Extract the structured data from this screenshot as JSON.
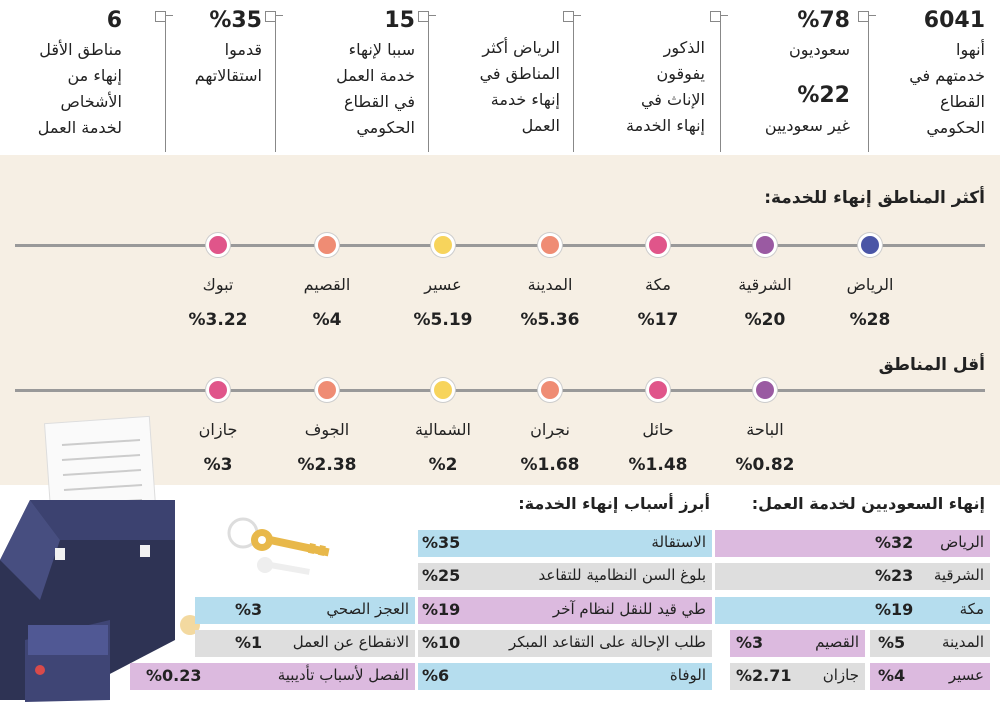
{
  "stats": [
    {
      "number": "6041",
      "lines": [
        "أنهوا",
        "خدمتهم في",
        "القطاع",
        "الحكومي"
      ]
    },
    {
      "number": "%78",
      "lines": [
        "سعوديون"
      ],
      "number2": "%22",
      "lines2": [
        "غير سعوديين"
      ]
    },
    {
      "lines": [
        "الذكور",
        "يفوقون",
        "الإناث في",
        "إنهاء الخدمة"
      ]
    },
    {
      "lines": [
        "الرياض أكثر",
        "المناطق في",
        "إنهاء خدمة",
        "العمل"
      ]
    },
    {
      "number": "15",
      "lines": [
        "سببا لإنهاء",
        "خدمة العمل",
        "في القطاع",
        "الحكومي"
      ]
    },
    {
      "number": "%35",
      "lines": [
        "قدموا",
        "استقالاتهم"
      ]
    },
    {
      "number": "6",
      "lines": [
        "مناطق الأقل",
        "إنهاء من",
        "الأشخاص",
        "لخدمة العمل"
      ]
    }
  ],
  "most_regions": {
    "title": "أكثر المناطق إنهاء للخدمة:",
    "items": [
      {
        "name": "الرياض",
        "value": "%28"
      },
      {
        "name": "الشرقية",
        "value": "%20"
      },
      {
        "name": "مكة",
        "value": "%17"
      },
      {
        "name": "المدينة",
        "value": "%5.36"
      },
      {
        "name": "عسير",
        "value": "%5.19"
      },
      {
        "name": "القصيم",
        "value": "%4"
      },
      {
        "name": "تبوك",
        "value": "%3.22"
      }
    ]
  },
  "least_regions": {
    "title": "أقل المناطق",
    "items": [
      {
        "name": "الباحة",
        "value": "%0.82"
      },
      {
        "name": "حائل",
        "value": "%1.48"
      },
      {
        "name": "نجران",
        "value": "%1.68"
      },
      {
        "name": "الشمالية",
        "value": "%2"
      },
      {
        "name": "الجوف",
        "value": "%2.38"
      },
      {
        "name": "جازان",
        "value": "%3"
      }
    ]
  },
  "saudis_by_region": {
    "title": "إنهاء السعوديين لخدمة العمل:",
    "rows": [
      {
        "name": "الرياض",
        "value": "%32"
      },
      {
        "name": "الشرقية",
        "value": "%23"
      },
      {
        "name": "مكة",
        "value": "%19"
      },
      {
        "name": "المدينة",
        "value": "%5"
      },
      {
        "name": "القصيم",
        "value": "%3"
      },
      {
        "name": "عسير",
        "value": "%4"
      },
      {
        "name": "جازان",
        "value": "%2.71"
      }
    ]
  },
  "reasons": {
    "title": "أبرز أسباب إنهاء الخدمة:",
    "rows": [
      {
        "name": "الاستقالة",
        "value": "%35"
      },
      {
        "name": "بلوغ السن النظامية للتقاعد",
        "value": "%25"
      },
      {
        "name": "طي قيد للنقل لنظام آخر",
        "value": "%19"
      },
      {
        "name": "العجز الصحي",
        "value": "%3"
      },
      {
        "name": "طلب الإحالة على التقاعد المبكر",
        "value": "%10"
      },
      {
        "name": "الانقطاع عن العمل",
        "value": "%1"
      },
      {
        "name": "الوفاة",
        "value": "%6"
      },
      {
        "name": "الفصل لأسباب تأديبية",
        "value": "%0.23"
      }
    ]
  }
}
